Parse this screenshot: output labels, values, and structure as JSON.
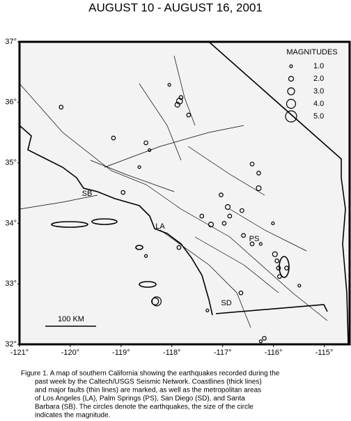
{
  "chart_data": {
    "type": "scatter",
    "title": "AUGUST 10 - AUGUST 16, 2001",
    "xlim": [
      -121,
      -114.5
    ],
    "ylim": [
      32,
      37
    ],
    "xticks": [
      {
        "value": -121,
        "label": "-121°"
      },
      {
        "value": -120,
        "label": "-120°"
      },
      {
        "value": -119,
        "label": "-119°"
      },
      {
        "value": -118,
        "label": "-118°"
      },
      {
        "value": -117,
        "label": "-117°"
      },
      {
        "value": -116,
        "label": "-116°"
      },
      {
        "value": -115,
        "label": "-115°"
      }
    ],
    "yticks": [
      {
        "value": 32,
        "label": "32°"
      },
      {
        "value": 33,
        "label": "33°"
      },
      {
        "value": 34,
        "label": "34°"
      },
      {
        "value": 35,
        "label": "35°"
      },
      {
        "value": 36,
        "label": "36°"
      },
      {
        "value": 37,
        "label": "37°"
      }
    ],
    "legend_title": "MAGNITUDES",
    "legend": [
      {
        "value": 1,
        "label": "1.0"
      },
      {
        "value": 2,
        "label": "2.0"
      },
      {
        "value": 3,
        "label": "3.0"
      },
      {
        "value": 4,
        "label": "4.0"
      },
      {
        "value": 5,
        "label": "5.0"
      }
    ],
    "color": "#000000",
    "x": [
      -117.85,
      -117.89,
      -117.82,
      -118.05,
      -120.18,
      -117.67,
      -119.15,
      -118.51,
      -118.64,
      -118.96,
      -116.9,
      -116.86,
      -116.97,
      -117.23,
      -117.41,
      -116.62,
      -116.42,
      -116.25,
      -116.01,
      -116.29,
      -116.29,
      -116.42,
      -118.3,
      -118.33,
      -118.51,
      -117.86,
      -117.3,
      -116.64,
      -115.97,
      -115.74,
      -115.49,
      -116.18,
      -116.25,
      -115.93,
      -118.44,
      -117.03,
      -116.59,
      -115.88,
      -115.9
    ],
    "y": [
      36.02,
      35.96,
      36.08,
      36.29,
      35.92,
      35.79,
      35.41,
      35.33,
      34.93,
      34.51,
      34.27,
      34.12,
      34.0,
      33.98,
      34.12,
      34.21,
      33.66,
      33.66,
      34.0,
      34.83,
      34.58,
      34.98,
      32.71,
      32.71,
      33.46,
      33.6,
      32.56,
      32.85,
      33.49,
      33.26,
      32.97,
      32.1,
      32.05,
      33.38,
      35.21,
      34.47,
      33.8,
      33.12,
      33.26
    ],
    "size": [
      2.5,
      2.0,
      1.5,
      1.0,
      1.5,
      1.5,
      1.5,
      1.5,
      1.0,
      1.5,
      2.0,
      1.5,
      1.5,
      2.0,
      1.5,
      1.5,
      1.5,
      1.0,
      1.0,
      1.5,
      2.0,
      1.5,
      4.0,
      3.0,
      1.0,
      1.5,
      1.0,
      1.5,
      2.0,
      1.5,
      1.0,
      1.5,
      1.0,
      1.5,
      1.0,
      1.5,
      1.5,
      1.5,
      1.5
    ],
    "cities": [
      "SB",
      "LA",
      "PS",
      "SD"
    ],
    "scale_label": "100 KM",
    "caption": [
      "Figure 1. A map of southern California showing the earthquakes recorded during the",
      "past week by the Caltech/USGS Seismic Network.  Coastlines (thick lines)",
      "and major faults (thin lines) are marked, as well as the metropolitan areas",
      "of Los Angeles (LA), Palm Springs (PS), San Diego (SD), and Santa",
      "Barbara (SB).  The circles denote the earthquakes, the size of the circle",
      "indicates the magnitude."
    ]
  }
}
